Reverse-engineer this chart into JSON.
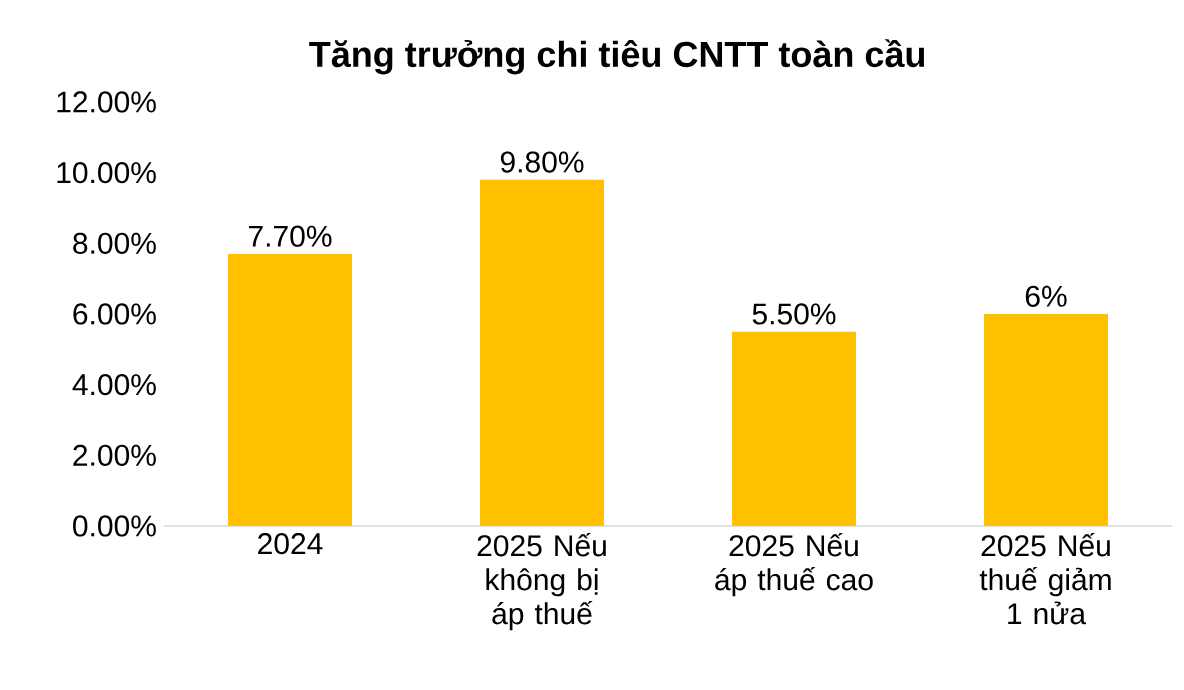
{
  "chart_data": {
    "type": "bar",
    "title": "Tăng trưởng chi tiêu CNTT toàn cầu",
    "categories": [
      "2024",
      "2025 Nếu không bị áp thuế",
      "2025 Nếu áp thuế cao",
      "2025 Nếu thuế giảm 1 nửa"
    ],
    "values": [
      7.7,
      9.8,
      5.5,
      6
    ],
    "value_labels": [
      "7.70%",
      "9.80%",
      "5.50%",
      "6%"
    ],
    "color": "#ffc000",
    "ylim": [
      0,
      12
    ],
    "yticks": [
      {
        "value": 0,
        "label": "0.00%"
      },
      {
        "value": 2,
        "label": "2.00%"
      },
      {
        "value": 4,
        "label": "4.00%"
      },
      {
        "value": 6,
        "label": "6.00%"
      },
      {
        "value": 8,
        "label": "8.00%"
      },
      {
        "value": 10,
        "label": "10.00%"
      },
      {
        "value": 12,
        "label": "12.00%"
      }
    ],
    "grid": false
  }
}
